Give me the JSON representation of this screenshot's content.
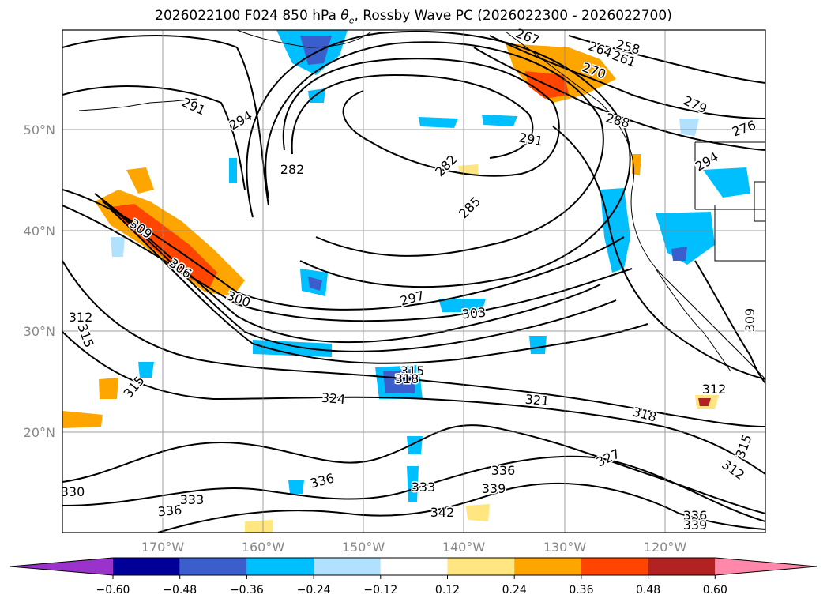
{
  "title": {
    "prefix": "2026022100 F024 850 hPa ",
    "symbol": "θ",
    "symbol_sub": "e",
    "suffix": ", Rossby Wave PC (2026022300 - 2026022700)"
  },
  "map": {
    "lat_labels": [
      "50°N",
      "40°N",
      "30°N",
      "20°N"
    ],
    "lon_labels": [
      "170°W",
      "160°W",
      "150°W",
      "140°W",
      "130°W",
      "120°W"
    ],
    "grid": true,
    "projection_hint": "Plate carrée, approx 180°W–110°W, 10°N–60°N"
  },
  "contour_labels": [
    "291",
    "294",
    "282",
    "282",
    "285",
    "291",
    "288",
    "279",
    "276",
    "267",
    "258",
    "264",
    "261",
    "270",
    "294",
    "309",
    "306",
    "300",
    "297",
    "303",
    "312",
    "315",
    "315",
    "318",
    "324",
    "315",
    "321",
    "318",
    "312",
    "309",
    "327",
    "315",
    "312",
    "336",
    "336",
    "333",
    "339",
    "342",
    "330",
    "333",
    "336",
    "336",
    "339"
  ],
  "colorbar": {
    "ticks": [
      "−0.60",
      "−0.48",
      "−0.36",
      "−0.24",
      "−0.12",
      "0.12",
      "0.24",
      "0.36",
      "0.48",
      "0.60"
    ],
    "colors": [
      "#9933cc",
      "#000099",
      "#3a5fcd",
      "#00bfff",
      "#b0e2ff",
      "#ffffff",
      "#ffe680",
      "#ffa500",
      "#ff4500",
      "#b22222",
      "#ff88aa"
    ]
  }
}
